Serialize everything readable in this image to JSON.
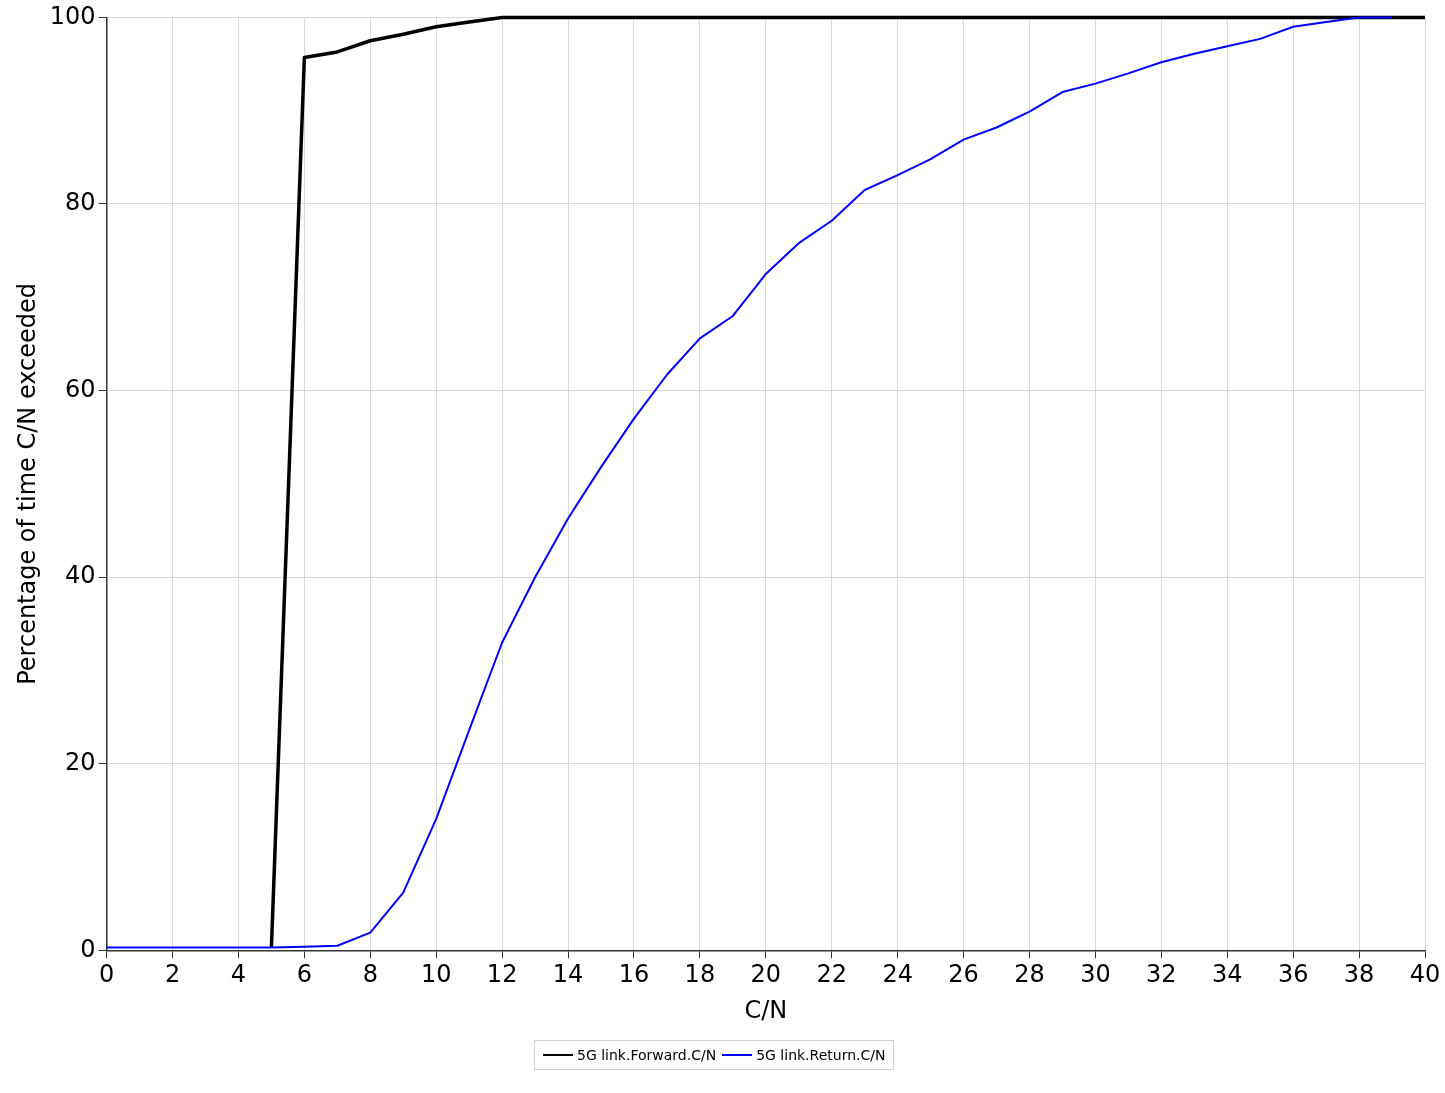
{
  "chart_data": {
    "type": "line",
    "xlabel": "C/N",
    "ylabel": "Percentage of time C/N exceeded",
    "xlim": [
      0,
      40
    ],
    "xticks": [
      0,
      2,
      4,
      6,
      8,
      10,
      12,
      14,
      16,
      18,
      20,
      22,
      24,
      26,
      28,
      30,
      32,
      34,
      36,
      38,
      40
    ],
    "ylim": [
      0,
      100
    ],
    "yticks": [
      0,
      20,
      40,
      60,
      80,
      100
    ],
    "grid": true,
    "legend": "bottom",
    "marker": "none",
    "line_style": "solid",
    "series": [
      {
        "name": "5G link.Forward.C/N",
        "color": "#000000",
        "x": [
          5,
          6,
          7,
          8,
          9,
          10,
          11,
          12,
          13,
          14,
          15,
          16,
          17,
          18,
          19,
          20,
          21,
          22,
          23,
          24,
          25,
          26,
          27,
          28,
          29,
          30,
          31,
          32,
          33,
          34,
          35,
          36,
          37,
          38,
          39,
          40
        ],
        "values": [
          0.3,
          95.7,
          96.3,
          97.5,
          98.2,
          99,
          99.5,
          100,
          100,
          100,
          100,
          100,
          100,
          100,
          100,
          100,
          100,
          100,
          100,
          100,
          100,
          100,
          100,
          100,
          100,
          100,
          100,
          100,
          100,
          100,
          100,
          100,
          100,
          100,
          100,
          100
        ]
      },
      {
        "name": "5G link.Return.C/N",
        "color": "#0000ff",
        "x": [
          0,
          1,
          2,
          3,
          4,
          5,
          6,
          7,
          8,
          9,
          10,
          11,
          12,
          13,
          14,
          15,
          16,
          17,
          18,
          19,
          20,
          21,
          22,
          23,
          24,
          25,
          26,
          27,
          28,
          29,
          30,
          31,
          32,
          33,
          34,
          35,
          36,
          37,
          38,
          39
        ],
        "values": [
          0.3,
          0.3,
          0.3,
          0.3,
          0.3,
          0.3,
          0.4,
          0.5,
          1.9,
          6.2,
          14.1,
          23.6,
          33,
          40,
          46.3,
          51.8,
          57,
          61.7,
          65.6,
          68,
          72.5,
          75.8,
          78.2,
          81.5,
          83.1,
          84.8,
          86.9,
          88.2,
          89.9,
          92,
          92.9,
          94,
          95.2,
          96.1,
          96.9,
          97.7,
          99,
          99.5,
          100,
          100
        ]
      }
    ]
  }
}
